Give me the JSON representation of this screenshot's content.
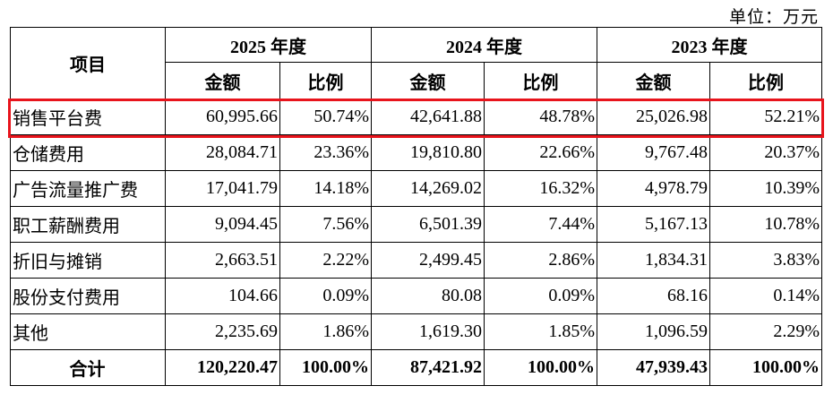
{
  "unit_label": "单位：万元",
  "header": {
    "item": "项目",
    "years": [
      "2025 年度",
      "2024 年度",
      "2023 年度"
    ],
    "amount": "金额",
    "ratio": "比例"
  },
  "rows": [
    {
      "label": "销售平台费",
      "v": [
        "60,995.66",
        "50.74%",
        "42,641.88",
        "48.78%",
        "25,026.98",
        "52.21%"
      ]
    },
    {
      "label": "仓储费用",
      "v": [
        "28,084.71",
        "23.36%",
        "19,810.80",
        "22.66%",
        "9,767.48",
        "20.37%"
      ]
    },
    {
      "label": "广告流量推广费",
      "v": [
        "17,041.79",
        "14.18%",
        "14,269.02",
        "16.32%",
        "4,978.79",
        "10.39%"
      ]
    },
    {
      "label": "职工薪酬费用",
      "v": [
        "9,094.45",
        "7.56%",
        "6,501.39",
        "7.44%",
        "5,167.13",
        "10.78%"
      ]
    },
    {
      "label": "折旧与摊销",
      "v": [
        "2,663.51",
        "2.22%",
        "2,499.45",
        "2.86%",
        "1,834.31",
        "3.83%"
      ]
    },
    {
      "label": "股份支付费用",
      "v": [
        "104.66",
        "0.09%",
        "80.08",
        "0.09%",
        "68.16",
        "0.14%"
      ]
    },
    {
      "label": "其他",
      "v": [
        "2,235.69",
        "1.86%",
        "1,619.30",
        "1.85%",
        "1,096.59",
        "2.29%"
      ]
    }
  ],
  "total": {
    "label": "合计",
    "v": [
      "120,220.47",
      "100.00%",
      "87,421.92",
      "100.00%",
      "47,939.43",
      "100.00%"
    ]
  },
  "highlight_color": "#e8141c"
}
